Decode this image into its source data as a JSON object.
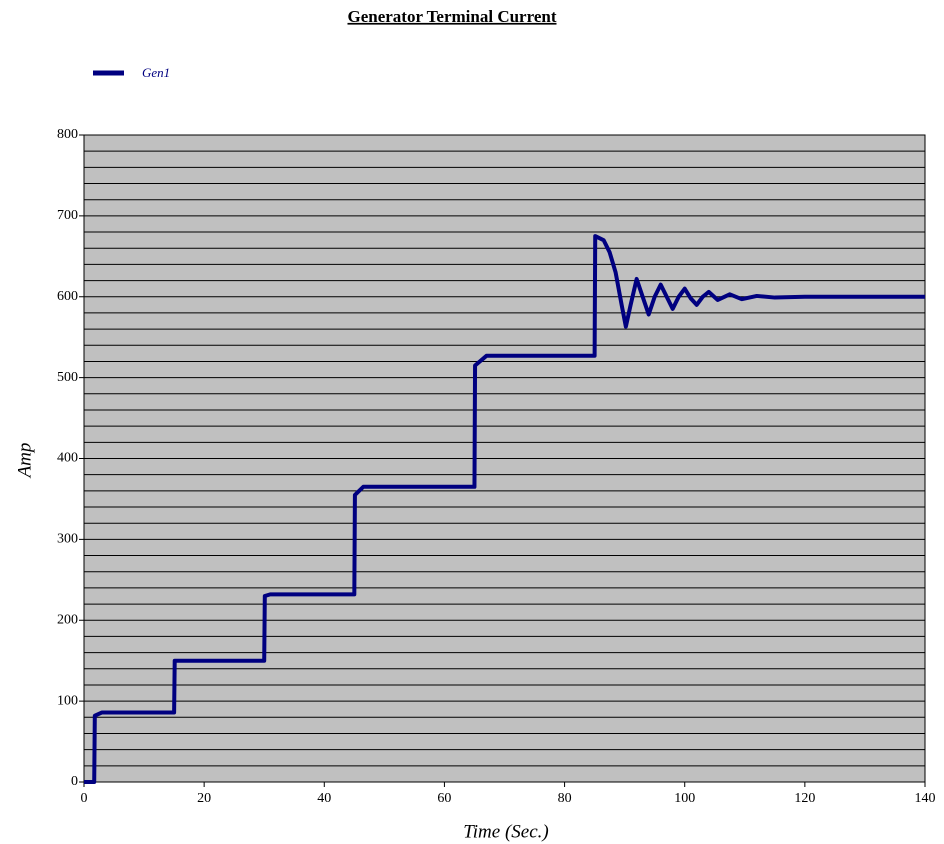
{
  "chart_data": {
    "type": "line",
    "title": "Generator Terminal Current",
    "xlabel": "Time (Sec.)",
    "ylabel": "Amp",
    "x": [
      0,
      1.7,
      1.8,
      3,
      15,
      15.1,
      30,
      30.1,
      31,
      45,
      45.1,
      46.5,
      65,
      65.1,
      67,
      85,
      85.1,
      86.5,
      87.5,
      88.5,
      89.5,
      90.2,
      91,
      92,
      93,
      94,
      95,
      96,
      97,
      98,
      99,
      100,
      101,
      102,
      103,
      104,
      105.5,
      107.5,
      109.5,
      112,
      115,
      120,
      140
    ],
    "series": [
      {
        "name": "Gen1",
        "color": "#000080",
        "values": [
          0,
          0,
          82,
          86,
          86,
          150,
          150,
          230,
          232,
          232,
          355,
          365,
          365,
          515,
          527,
          527,
          675,
          670,
          655,
          630,
          590,
          563,
          590,
          622,
          600,
          578,
          600,
          615,
          600,
          585,
          600,
          610,
          598,
          590,
          600,
          606,
          596,
          603,
          597,
          601,
          599,
          600,
          600
        ]
      }
    ],
    "xlim": [
      0,
      140
    ],
    "xticks": [
      0,
      20,
      40,
      60,
      80,
      100,
      120,
      140
    ],
    "ylim": [
      0,
      800
    ],
    "yticks": [
      0,
      100,
      200,
      300,
      400,
      500,
      600,
      700,
      800
    ],
    "y_grid_lines": [
      20,
      40,
      60,
      80,
      100,
      120,
      140,
      160,
      180,
      200,
      220,
      240,
      260,
      280,
      300,
      320,
      340,
      360,
      380,
      400,
      420,
      440,
      460,
      480,
      500,
      520,
      540,
      560,
      580,
      600,
      620,
      640,
      660,
      680,
      700,
      720,
      740,
      760,
      780
    ],
    "grid": true,
    "plot_background": "#c0c0c0",
    "legend": "top-left"
  }
}
